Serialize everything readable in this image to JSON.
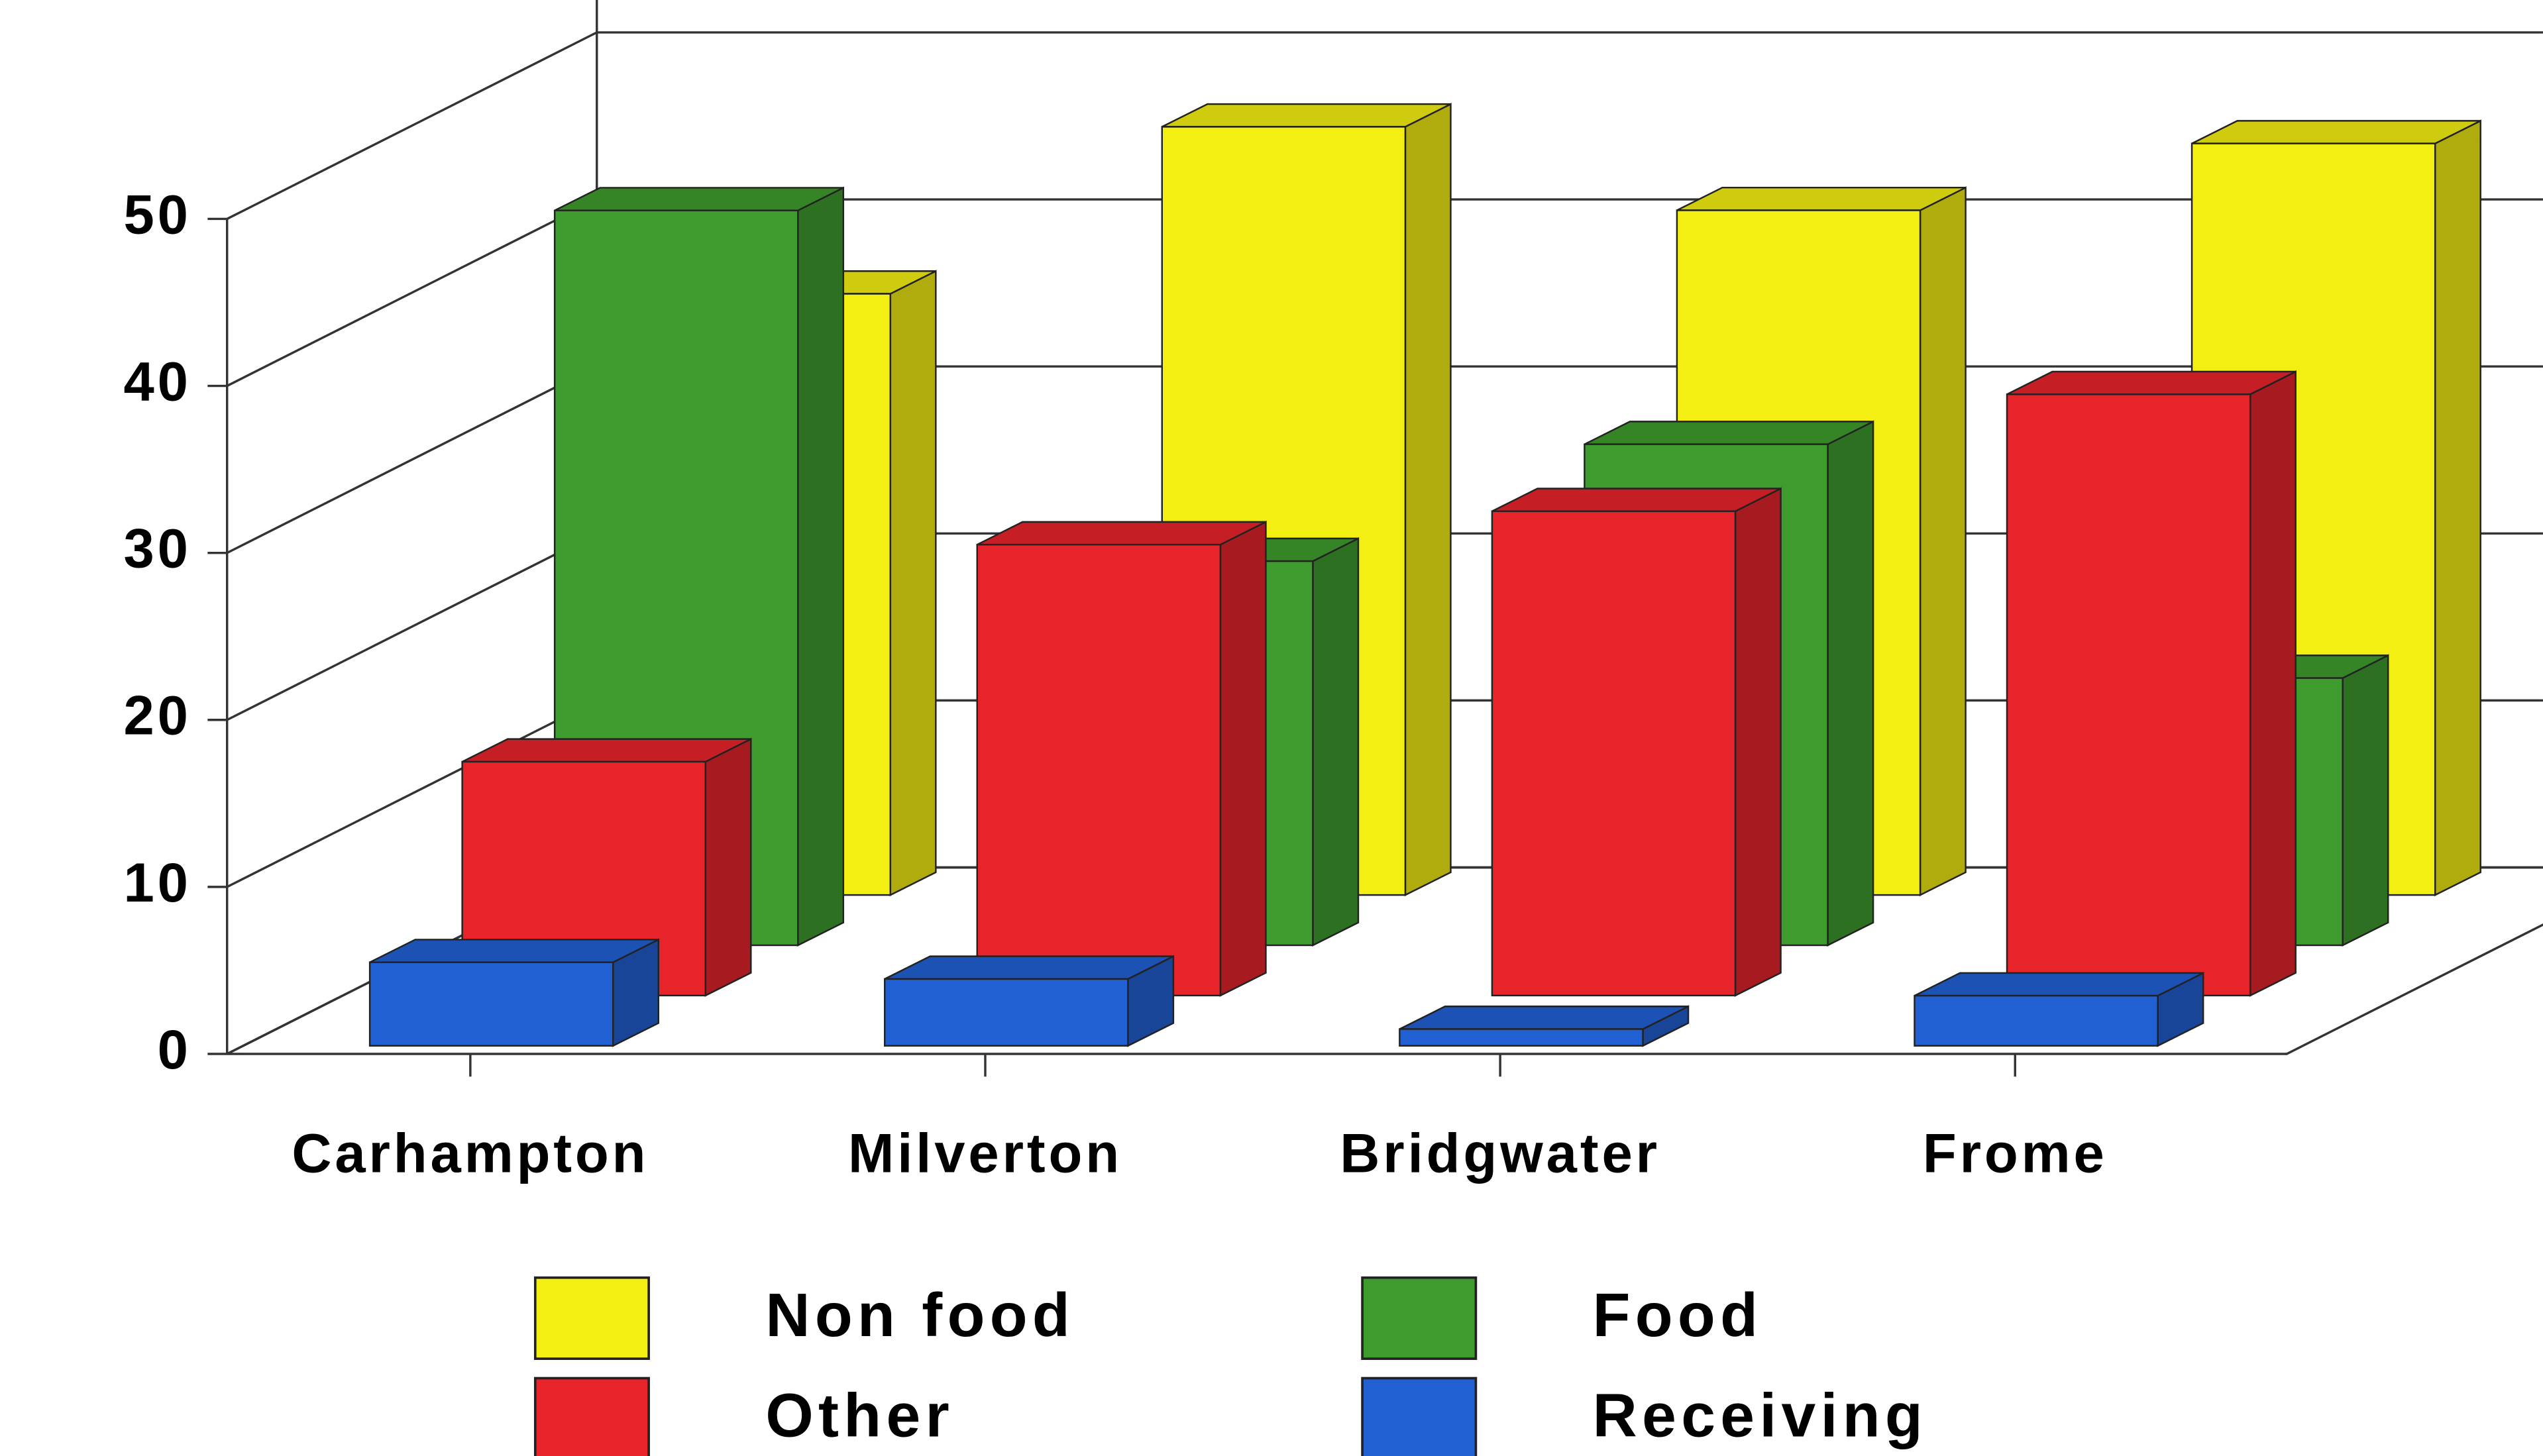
{
  "chart_data": {
    "type": "bar3d",
    "categories": [
      "Carhampton",
      "Milverton",
      "Bridgwater",
      "Frome"
    ],
    "series": [
      {
        "name": "Non food",
        "color": "#f4ef12",
        "values": [
          36,
          46,
          41,
          45
        ]
      },
      {
        "name": "Food",
        "color": "#3e9c2e",
        "values": [
          44,
          23,
          30,
          16
        ]
      },
      {
        "name": "Other",
        "color": "#e8242b",
        "values": [
          14,
          27,
          29,
          36
        ]
      },
      {
        "name": "Receiving",
        "color": "#2160d2",
        "values": [
          5,
          4,
          1,
          3
        ]
      }
    ],
    "ylim": [
      0,
      50
    ],
    "yticks": [
      0,
      10,
      20,
      30,
      40,
      50
    ],
    "grid": true
  }
}
